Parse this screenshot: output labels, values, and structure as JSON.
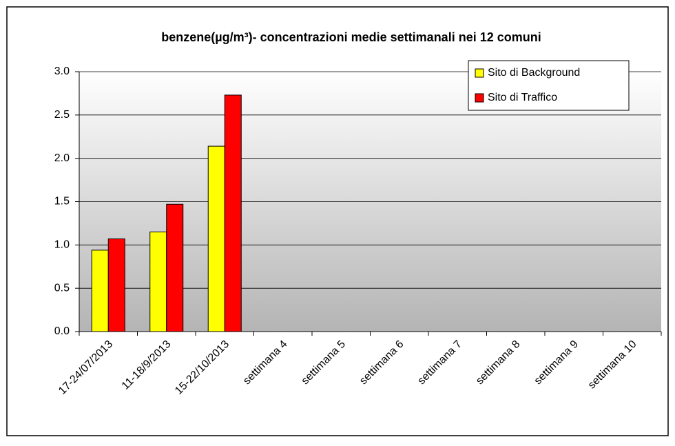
{
  "chart_data": {
    "type": "bar",
    "title": "benzene(µg/m³)- concentrazioni medie settimanali nei 12 comuni",
    "categories": [
      "17-24/07/2013",
      "11-18/9/2013",
      "15-22/10/2013",
      "settimana 4",
      "settimana 5",
      "settimana 6",
      "settimana 7",
      "settimana 8",
      "settimana 9",
      "settimana 10"
    ],
    "series": [
      {
        "name": "Sito di Background",
        "color": "#ffff00",
        "values": [
          0.94,
          1.15,
          2.14,
          null,
          null,
          null,
          null,
          null,
          null,
          null
        ]
      },
      {
        "name": "Sito di Traffico",
        "color": "#ff0000",
        "values": [
          1.07,
          1.47,
          2.73,
          null,
          null,
          null,
          null,
          null,
          null,
          null
        ]
      }
    ],
    "ylim": [
      0,
      3
    ],
    "yticks": [
      {
        "value": 0,
        "label": "0.0"
      },
      {
        "value": 0.5,
        "label": "0.5"
      },
      {
        "value": 1,
        "label": "1.0"
      },
      {
        "value": 1.5,
        "label": "1.5"
      },
      {
        "value": 2,
        "label": "2.0"
      },
      {
        "value": 2.5,
        "label": "2.5"
      },
      {
        "value": 3,
        "label": "3.0"
      }
    ],
    "grid": true,
    "legend": "top right"
  }
}
